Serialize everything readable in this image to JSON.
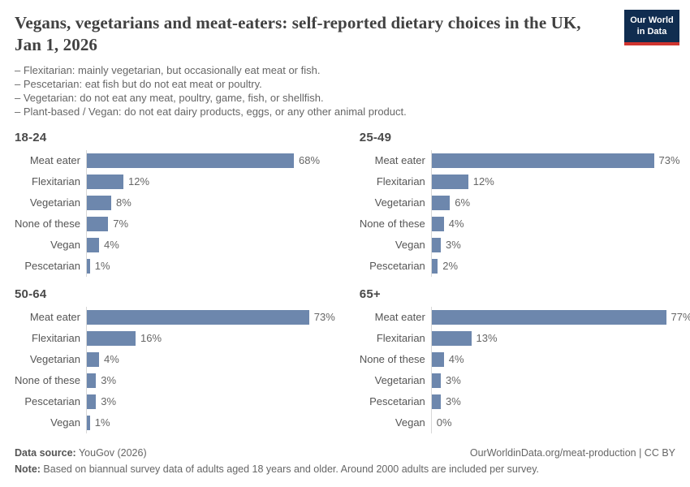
{
  "header": {
    "title": "Vegans, vegetarians and meat-eaters: self-reported dietary choices in the UK, Jan 1, 2026",
    "subtitle_lines": [
      "– Flexitarian: mainly vegetarian, but occasionally eat meat or fish.",
      "– Pescetarian: eat fish but do not eat meat or poultry.",
      "– Vegetarian: do not eat any meat, poultry, game, fish, or shellfish.",
      "– Plant-based / Vegan: do not eat dairy products, eggs, or any other animal product."
    ],
    "logo": {
      "line1": "Our World",
      "line2": "in Data"
    }
  },
  "chart_data": [
    {
      "type": "bar",
      "title": "18-24",
      "categories": [
        "Meat eater",
        "Flexitarian",
        "Vegetarian",
        "None of these",
        "Vegan",
        "Pescetarian"
      ],
      "values": [
        68,
        12,
        8,
        7,
        4,
        1
      ],
      "unit": "%",
      "xlim": [
        0,
        100
      ],
      "orientation": "horizontal",
      "grid": false,
      "legend": "none"
    },
    {
      "type": "bar",
      "title": "25-49",
      "categories": [
        "Meat eater",
        "Flexitarian",
        "Vegetarian",
        "None of these",
        "Vegan",
        "Pescetarian"
      ],
      "values": [
        73,
        12,
        6,
        4,
        3,
        2
      ],
      "unit": "%",
      "xlim": [
        0,
        100
      ],
      "orientation": "horizontal",
      "grid": false,
      "legend": "none"
    },
    {
      "type": "bar",
      "title": "50-64",
      "categories": [
        "Meat eater",
        "Flexitarian",
        "Vegetarian",
        "None of these",
        "Pescetarian",
        "Vegan"
      ],
      "values": [
        73,
        16,
        4,
        3,
        3,
        1
      ],
      "unit": "%",
      "xlim": [
        0,
        100
      ],
      "orientation": "horizontal",
      "grid": false,
      "legend": "none"
    },
    {
      "type": "bar",
      "title": "65+",
      "categories": [
        "Meat eater",
        "Flexitarian",
        "None of these",
        "Vegetarian",
        "Pescetarian",
        "Vegan"
      ],
      "values": [
        77,
        13,
        4,
        3,
        3,
        0
      ],
      "unit": "%",
      "xlim": [
        0,
        100
      ],
      "orientation": "horizontal",
      "grid": false,
      "legend": "none"
    }
  ],
  "footer": {
    "source_label": "Data source:",
    "source_value": " YouGov (2026)",
    "attribution": "OurWorldinData.org/meat-production | CC BY",
    "note_label": "Note:",
    "note_value": " Based on biannual survey data of adults aged 18 years and older. Around 2000 adults are included per survey."
  },
  "colors": {
    "bar": "#6d87ad",
    "axis": "#d8d8d8",
    "title": "#414141",
    "subtitle": "#666666",
    "chart_title": "#4a4a4a",
    "label": "#555555",
    "value": "#666666",
    "footer": "#666666",
    "footer_bold": "#555555",
    "logo_bg": "#102d50",
    "logo_accent": "#d0352f"
  }
}
